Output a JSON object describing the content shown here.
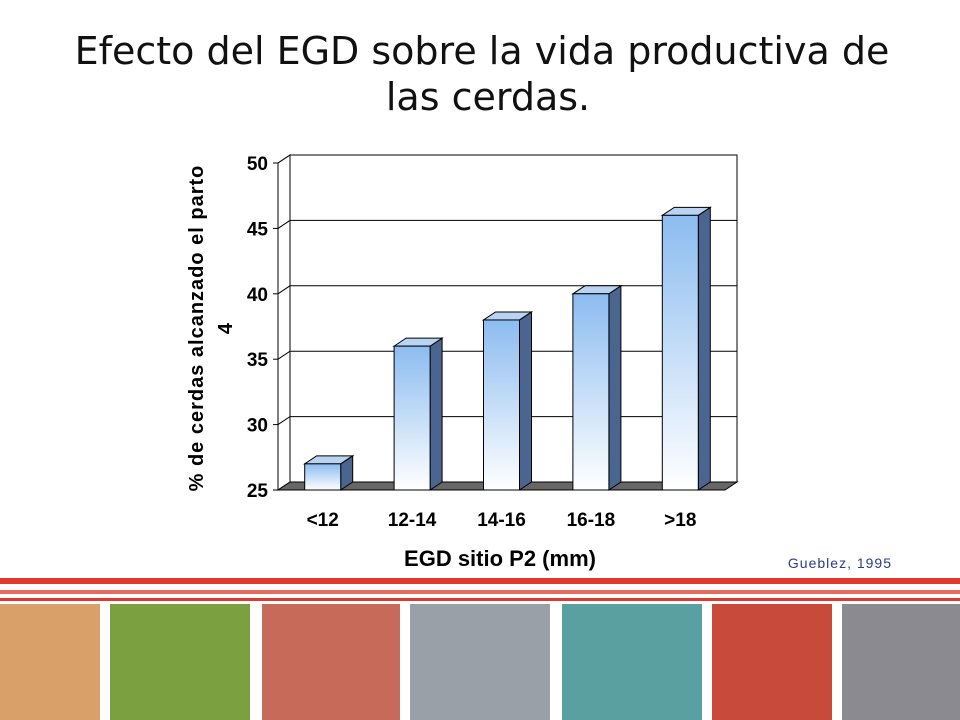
{
  "chart_data": {
    "type": "bar3d",
    "title": "Efecto del EGD sobre la vida productiva de las cerdas.",
    "y_label": [
      "% de cerdas alcanzado el parto",
      "4"
    ],
    "x_label": "EGD sitio P2 (mm)",
    "source": "Gueblez, 1995",
    "categories": [
      "<12",
      "12-14",
      "14-16",
      "16-18",
      ">18"
    ],
    "values": [
      27,
      36,
      38,
      40,
      46
    ],
    "ylim": [
      25,
      50
    ],
    "yticks": [
      25,
      30,
      35,
      40,
      45,
      50
    ],
    "grid": true
  }
}
